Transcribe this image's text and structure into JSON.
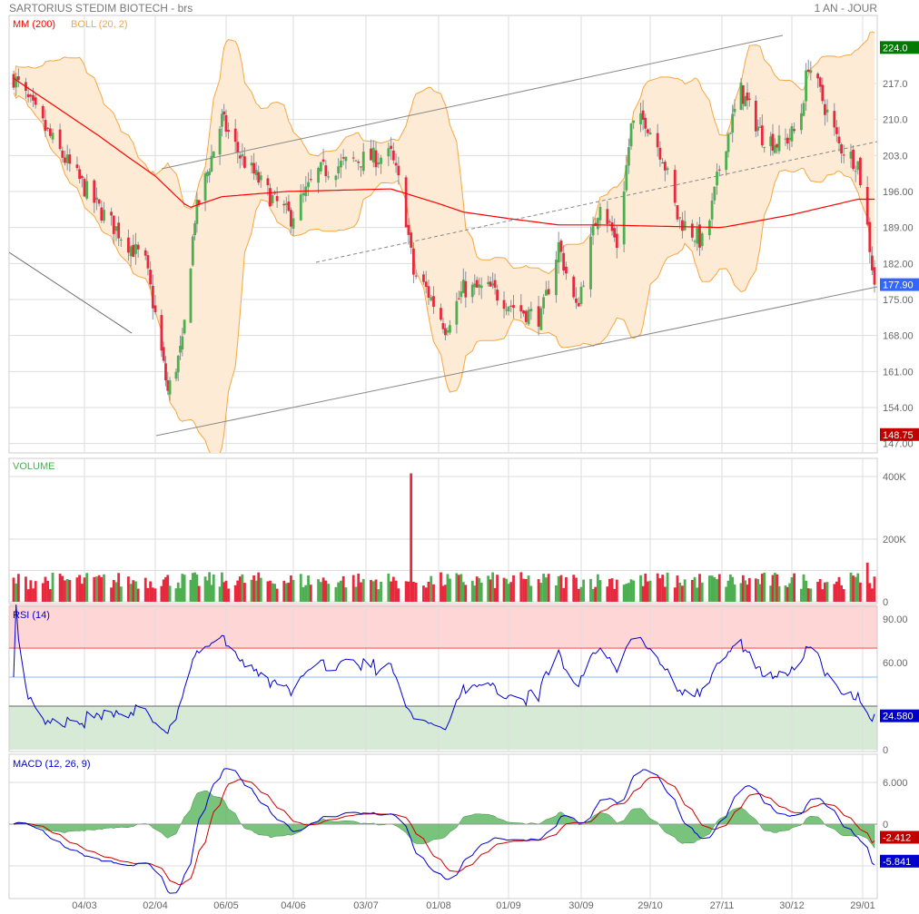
{
  "header": {
    "title": "SARTORIUS STEDIM BIOTECH - brs",
    "period": "1 AN - JOUR"
  },
  "colors": {
    "up": "#4caf50",
    "down": "#e8283c",
    "ma": "#ff0000",
    "boll_line": "#f5a742",
    "boll_fill": "#fdebd6",
    "rsi": "#0000cc",
    "macd": "#0000cc",
    "signal": "#cc0000",
    "hist": "#4caf50"
  },
  "chart_data": [
    {
      "type": "candlestick",
      "legend": [
        "MM (200)",
        "BOLL (20, 2)"
      ],
      "ylim": [
        147,
        226
      ],
      "y_ticks": [
        "217.0",
        "210.0",
        "203.0",
        "196.00",
        "189.00",
        "182.00",
        "175.00",
        "168.00",
        "161.00",
        "154.00",
        "147.00"
      ],
      "y_tick_values": [
        217,
        210,
        203,
        196,
        189,
        182,
        175,
        168,
        161,
        154,
        147
      ],
      "badges": [
        {
          "label": "224.0",
          "value": 224,
          "color": "#007a00"
        },
        {
          "label": "177.90",
          "value": 177.9,
          "color": "#3366ff"
        },
        {
          "label": "148.75",
          "value": 148.75,
          "color": "#c00000"
        }
      ],
      "close_approx": [
        [
          "03/02",
          218.2
        ],
        [
          "20/02",
          205
        ],
        [
          "10/03",
          192.6
        ],
        [
          "29/03",
          182
        ],
        [
          "08/04",
          157
        ],
        [
          "15/04",
          166
        ],
        [
          "21/04",
          191
        ],
        [
          "04/05",
          210
        ],
        [
          "12/05",
          203
        ],
        [
          "26/05",
          194.5
        ],
        [
          "03/06",
          191
        ],
        [
          "14/06",
          199.7
        ],
        [
          "28/06",
          202
        ],
        [
          "13/07",
          203
        ],
        [
          "18/07",
          194.5
        ],
        [
          "22/07",
          180
        ],
        [
          "27/07",
          177
        ],
        [
          "04/08",
          169.7
        ],
        [
          "12/08",
          177
        ],
        [
          "24/08",
          177
        ],
        [
          "05/09",
          173
        ],
        [
          "14/09",
          171.5
        ],
        [
          "21/09",
          185.6
        ],
        [
          "28/09",
          173
        ],
        [
          "08/10",
          194.5
        ],
        [
          "15/10",
          185.6
        ],
        [
          "21/10",
          208.5
        ],
        [
          "27/10",
          210
        ],
        [
          "03/11",
          203
        ],
        [
          "09/11",
          191
        ],
        [
          "20/11",
          185.6
        ],
        [
          "27/11",
          203
        ],
        [
          "06/12",
          215.6
        ],
        [
          "16/12",
          206.8
        ],
        [
          "25/12",
          205
        ],
        [
          "02/01",
          208.5
        ],
        [
          "06/01",
          221
        ],
        [
          "12/01",
          213.8
        ],
        [
          "19/01",
          205
        ],
        [
          "27/01",
          201.5
        ],
        [
          "31/01",
          189
        ],
        [
          "03/02",
          177.9
        ]
      ],
      "ma200": [
        [
          "03/02",
          218
        ],
        [
          "10/03",
          206.8
        ],
        [
          "21/03",
          203
        ],
        [
          "02/04",
          199
        ],
        [
          "18/04",
          192.8
        ],
        [
          "04/05",
          195
        ],
        [
          "01/06",
          196
        ],
        [
          "13/07",
          196.5
        ],
        [
          "12/08",
          192
        ],
        [
          "21/09",
          189.5
        ],
        [
          "08/10",
          189.5
        ],
        [
          "27/11",
          189
        ],
        [
          "30/12",
          191.5
        ],
        [
          "27/01",
          194.5
        ],
        [
          "03/02",
          194.5
        ]
      ]
    },
    {
      "type": "bar",
      "title": "VOLUME",
      "ylim": [
        0,
        440
      ],
      "y_ticks": [
        "400K",
        "200K",
        "0"
      ],
      "y_tick_values": [
        400,
        200,
        0
      ],
      "spikes_k": [
        [
          "21/07",
          410
        ],
        [
          "23/06",
          190
        ],
        [
          "20/09",
          190
        ],
        [
          "30/09",
          205
        ],
        [
          "31/01",
          125
        ],
        [
          "30/01",
          110
        ],
        [
          "29/01",
          95
        ]
      ]
    },
    {
      "type": "line",
      "title": "RSI (14)",
      "ylim": [
        0,
        100
      ],
      "y_ticks": [
        "90.00",
        "60.00",
        "0"
      ],
      "y_tick_values": [
        90,
        60,
        0
      ],
      "levels": [
        70,
        50,
        30
      ],
      "badge": {
        "label": "24.580",
        "value": 24.58
      }
    },
    {
      "type": "line",
      "title": "MACD (12, 26, 9)",
      "ylim": [
        -10.5,
        10.5
      ],
      "y_ticks": [
        "6.000",
        "0"
      ],
      "y_tick_values": [
        6,
        0
      ],
      "badges": [
        {
          "label": "-2.412",
          "value": -2.412,
          "color": "#c00000"
        },
        {
          "label": "-5.841",
          "value": -5.841,
          "color": "#0000cc"
        }
      ]
    }
  ],
  "x_axis": {
    "ticks": [
      "04/03",
      "02/04",
      "06/05",
      "04/06",
      "03/07",
      "01/08",
      "01/09",
      "30/09",
      "29/10",
      "27/11",
      "30/12",
      "29/01"
    ]
  }
}
